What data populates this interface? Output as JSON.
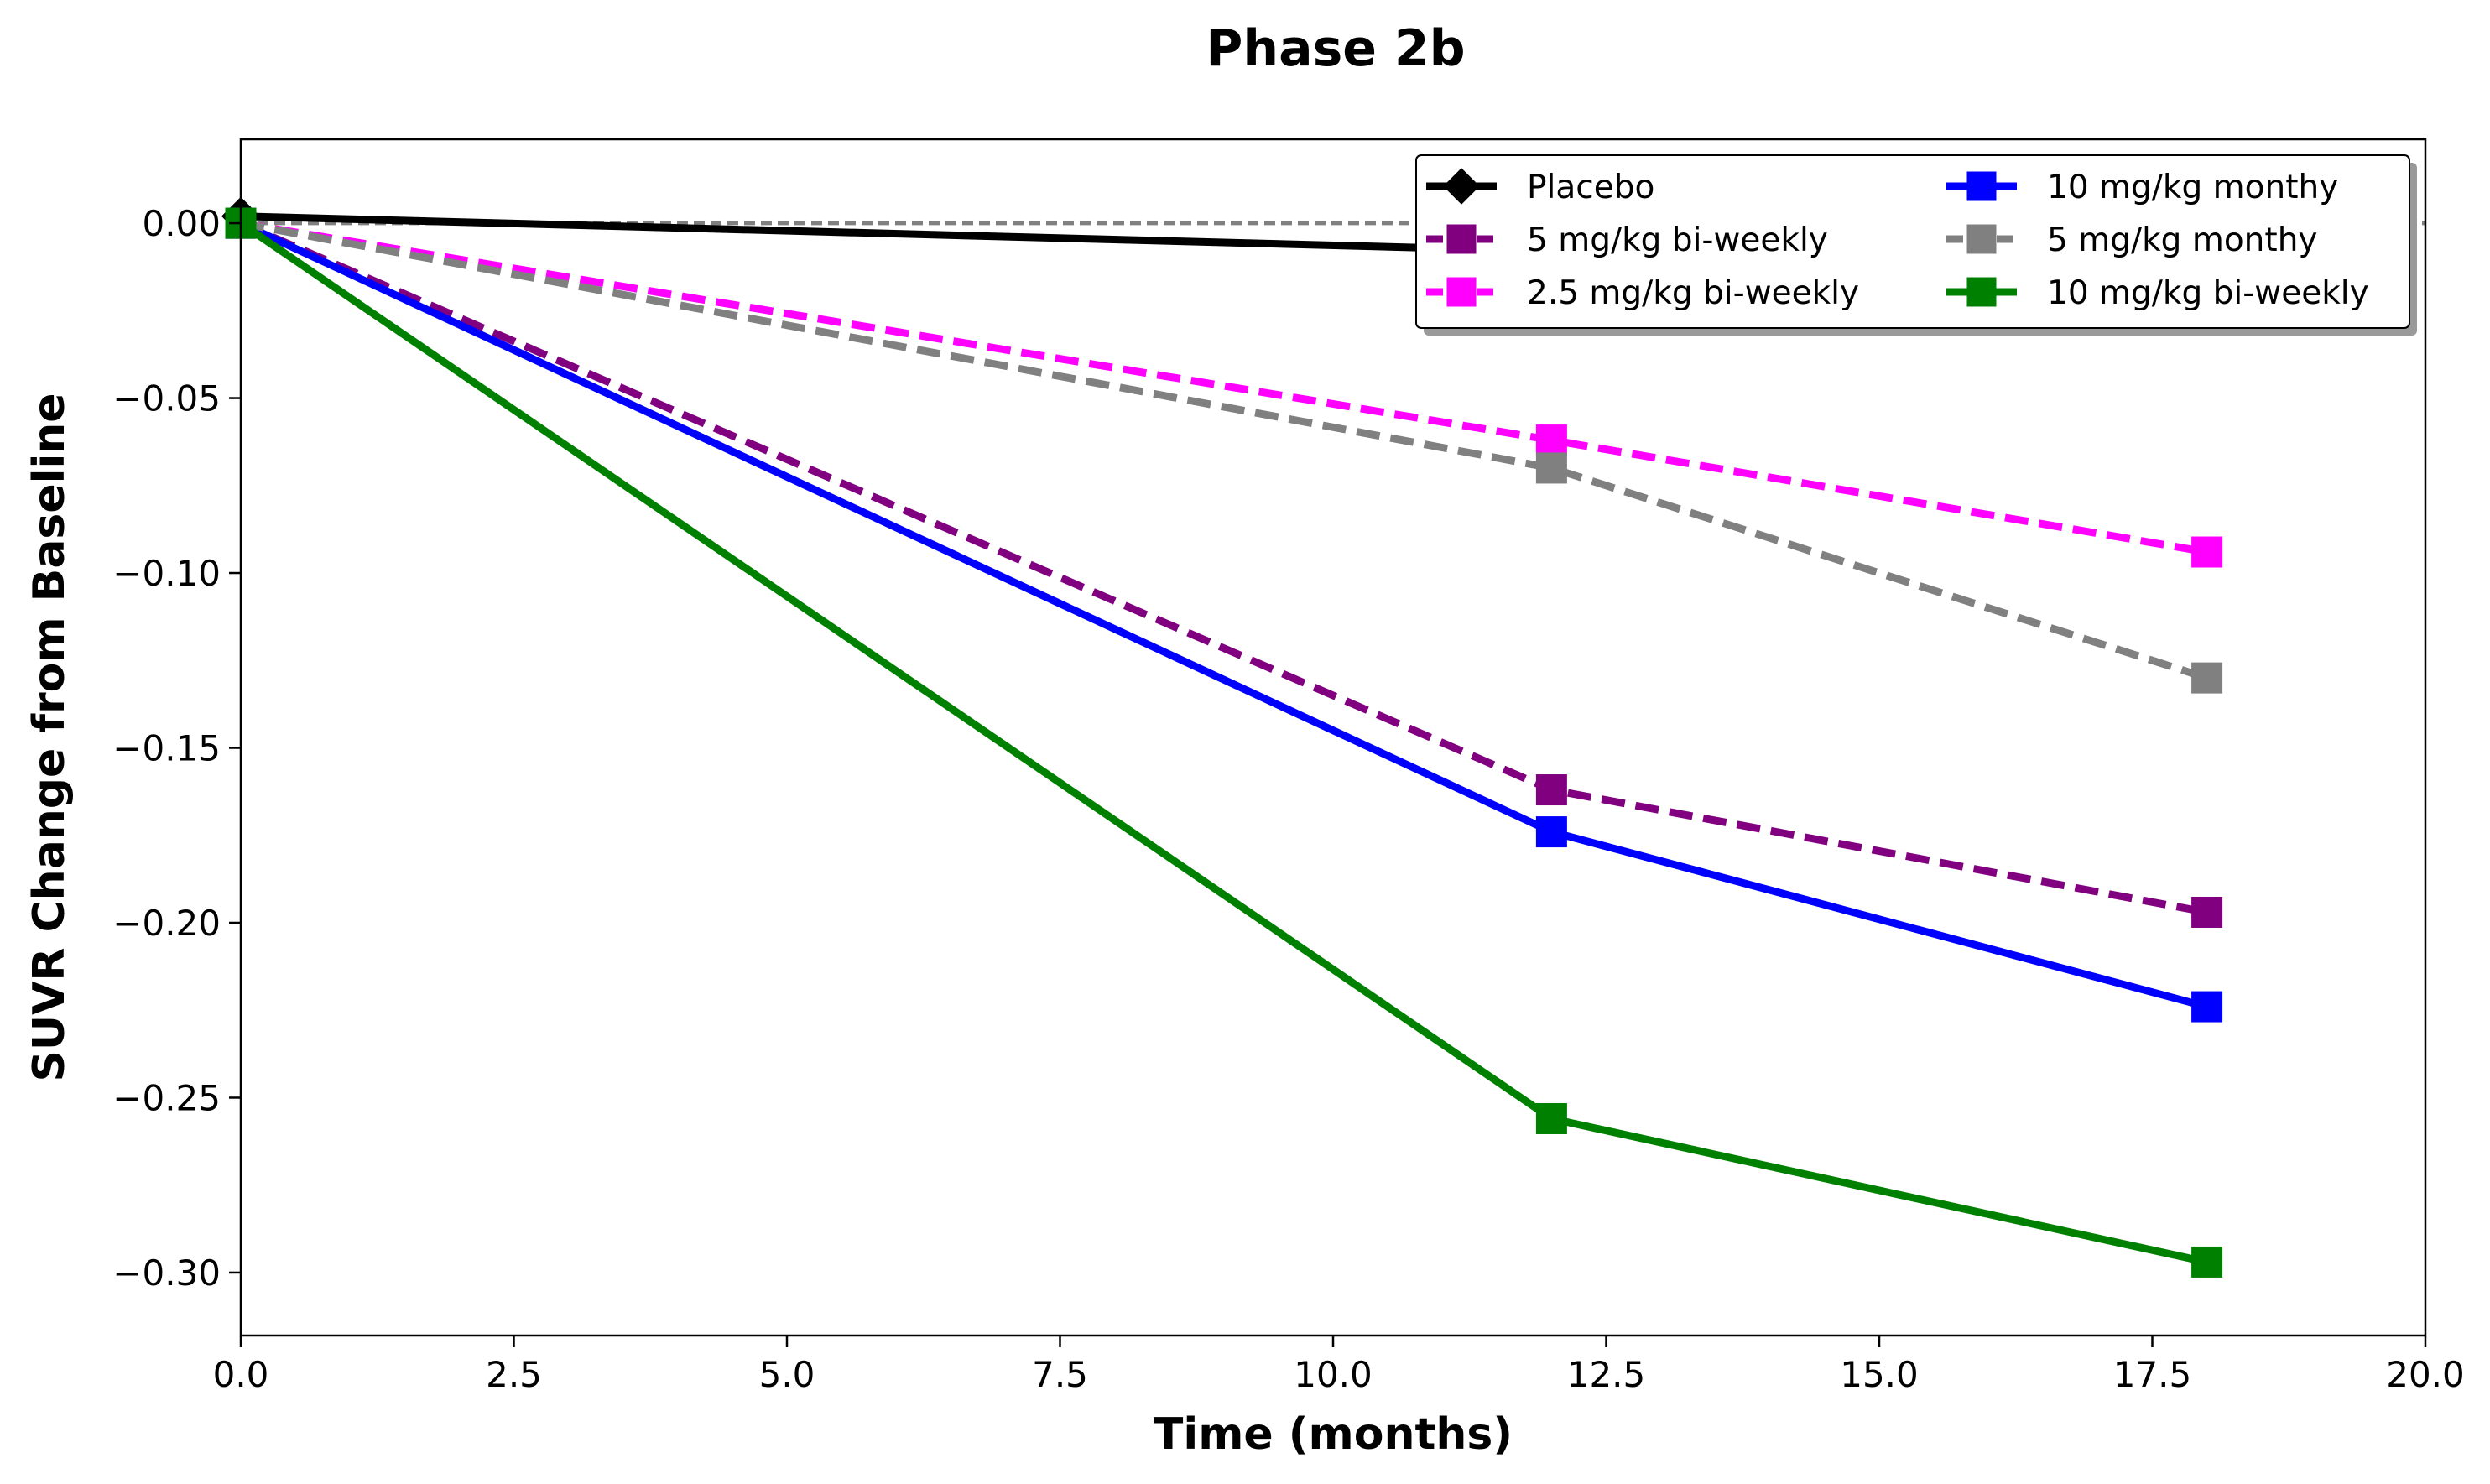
{
  "chart_data": {
    "type": "line",
    "title": "Phase 2b",
    "xlabel": "Time (months)",
    "ylabel": "SUVR Change from Baseline",
    "xlim": [
      0,
      20
    ],
    "ylim": [
      -0.318,
      0.024
    ],
    "xticks": [
      0,
      2.5,
      5,
      7.5,
      10,
      12.5,
      15,
      17.5,
      20
    ],
    "xtick_labels": [
      "0.0",
      "2.5",
      "5.0",
      "7.5",
      "10.0",
      "12.5",
      "15.0",
      "17.5",
      "20.0"
    ],
    "yticks": [
      0,
      -0.05,
      -0.1,
      -0.15,
      -0.2,
      -0.25,
      -0.3
    ],
    "ytick_labels": [
      "0.00",
      "−0.05",
      "−0.10",
      "−0.15",
      "−0.20",
      "−0.25",
      "−0.30"
    ],
    "grid": false,
    "legend_position": "top-right",
    "legend_columns": 2,
    "reference_line": {
      "y": 0,
      "style": "dashed",
      "color": "#808080"
    },
    "series": [
      {
        "name": "Placebo",
        "color": "#000000",
        "dash": "solid",
        "marker": "diamond",
        "x": [
          0,
          12
        ],
        "y": [
          0.002,
          -0.008
        ]
      },
      {
        "name": "5 mg/kg bi-weekly",
        "color": "#800080",
        "dash": "dashed",
        "marker": "square",
        "x": [
          0,
          12,
          18
        ],
        "y": [
          0.0,
          -0.162,
          -0.197
        ]
      },
      {
        "name": "2.5 mg/kg bi-weekly",
        "color": "#ff00ff",
        "dash": "dashed",
        "marker": "square",
        "x": [
          0,
          12,
          18
        ],
        "y": [
          0.0,
          -0.062,
          -0.094
        ]
      },
      {
        "name": "10 mg/kg monthy",
        "color": "#0000ff",
        "dash": "solid",
        "marker": "square",
        "x": [
          0,
          12,
          18
        ],
        "y": [
          0.0,
          -0.174,
          -0.224
        ]
      },
      {
        "name": "5 mg/kg monthy",
        "color": "#808080",
        "dash": "dashed",
        "marker": "square",
        "x": [
          0,
          12,
          18
        ],
        "y": [
          0.0,
          -0.07,
          -0.13
        ]
      },
      {
        "name": "10 mg/kg bi-weekly",
        "color": "#008000",
        "dash": "solid",
        "marker": "square",
        "x": [
          0,
          12,
          18
        ],
        "y": [
          0.0,
          -0.256,
          -0.297
        ]
      }
    ]
  }
}
